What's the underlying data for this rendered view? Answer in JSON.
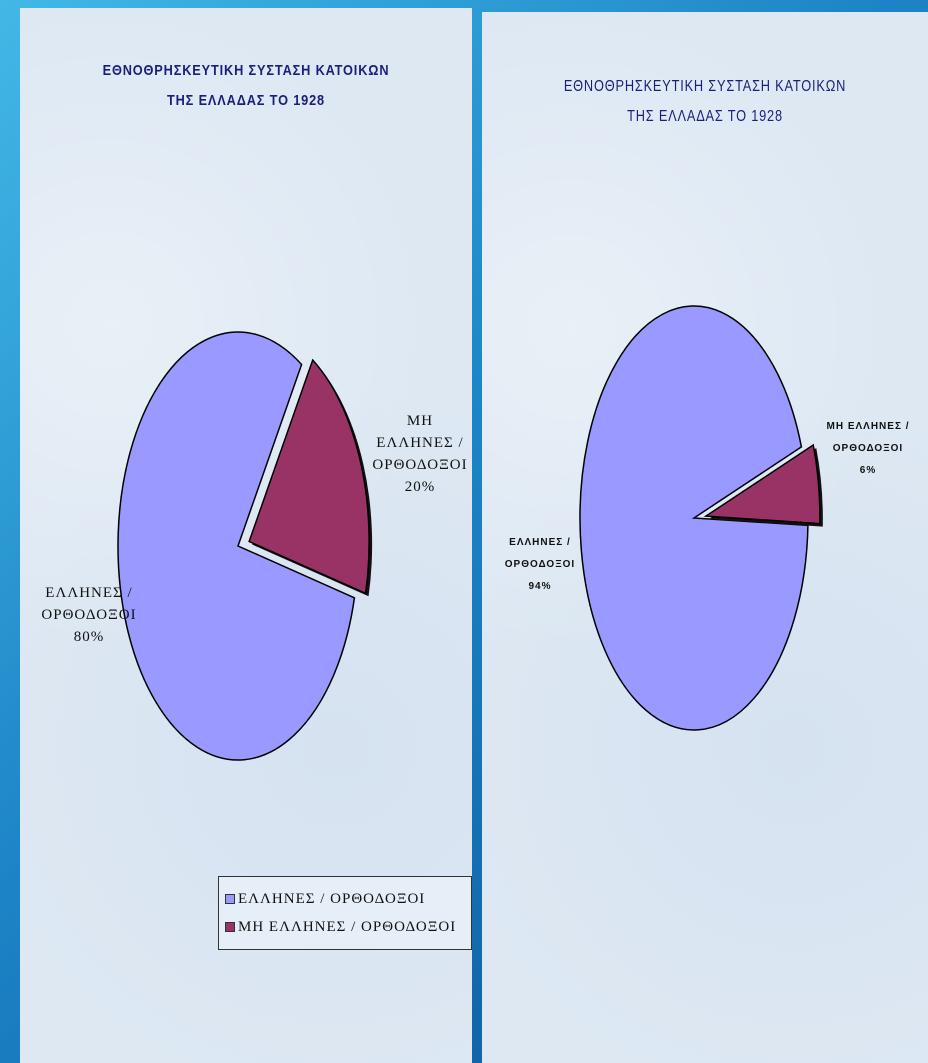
{
  "chart_data": [
    {
      "type": "pie",
      "title": "ΕΘΝΟΘΡΗΣΚΕΥΤΙΚΗ ΣΥΣΤΑΣΗ ΚΑΤΟΙΚΩΝ ΤΗΣ ΕΛΛΑΔΑΣ ΤΟ 1928",
      "title_lines": [
        "ΕΘΝΟΘΡΗΣΚΕΥΤΙΚΗ ΣΥΣΤΑΣΗ ΚΑΤΟΙΚΩΝ",
        "ΤΗΣ ΕΛΛΑΔΑΣ ΤΟ 1928"
      ],
      "slices": [
        {
          "label": "ΕΛΛΗΝΕΣ / ΟΡΘΟΔΟΞΟΙ",
          "label_lines": [
            "ΕΛΛΗΝΕΣ /",
            "ΟΡΘΟΔΟΞΟΙ",
            "80%"
          ],
          "value": 80,
          "color": "#9999ff"
        },
        {
          "label": "ΜΗ ΕΛΛΗΝΕΣ / ΟΡΘΟΔΟΞΟΙ",
          "label_lines": [
            "ΜΗ",
            "ΕΛΛΗΝΕΣ /",
            "ΟΡΘΟΔΟΞΟΙ",
            "20%"
          ],
          "value": 20,
          "color": "#993366",
          "exploded": true
        }
      ],
      "legend": {
        "placement": "bottom-right",
        "entries": [
          "ΕΛΛΗΝΕΣ / ΟΡΘΟΔΟΞΟΙ",
          "ΜΗ ΕΛΛΗΝΕΣ / ΟΡΘΟΔΟΞΟΙ"
        ]
      }
    },
    {
      "type": "pie",
      "title": "ΕΘΝΟΘΡΗΣΚΕΥΤΙΚΗ ΣΥΣΤΑΣΗ ΚΑΤΟΙΚΩΝ ΤΗΣ ΕΛΛΑΔΑΣ ΤΟ 1928",
      "title_lines": [
        "ΕΘΝΟΘΡΗΣΚΕΥΤΙΚΗ ΣΥΣΤΑΣΗ ΚΑΤΟΙΚΩΝ",
        "ΤΗΣ ΕΛΛΑΔΑΣ ΤΟ 1928"
      ],
      "slices": [
        {
          "label": "ΕΛΛΗΝΕΣ / ΟΡΘΟΔΟΞΟΙ",
          "label_lines": [
            "ΕΛΛΗΝΕΣ /",
            "ΟΡΘΟΔΟΞΟΙ",
            "94%"
          ],
          "value": 94,
          "color": "#9999ff"
        },
        {
          "label": "ΜΗ ΕΛΛΗΝΕΣ / ΟΡΘΟΔΟΞΟΙ",
          "label_lines": [
            "ΜΗ ΕΛΛΗΝΕΣ /",
            "ΟΡΘΟΔΟΞΟΙ",
            "6%"
          ],
          "value": 6,
          "color": "#993366",
          "exploded": true
        }
      ]
    }
  ]
}
